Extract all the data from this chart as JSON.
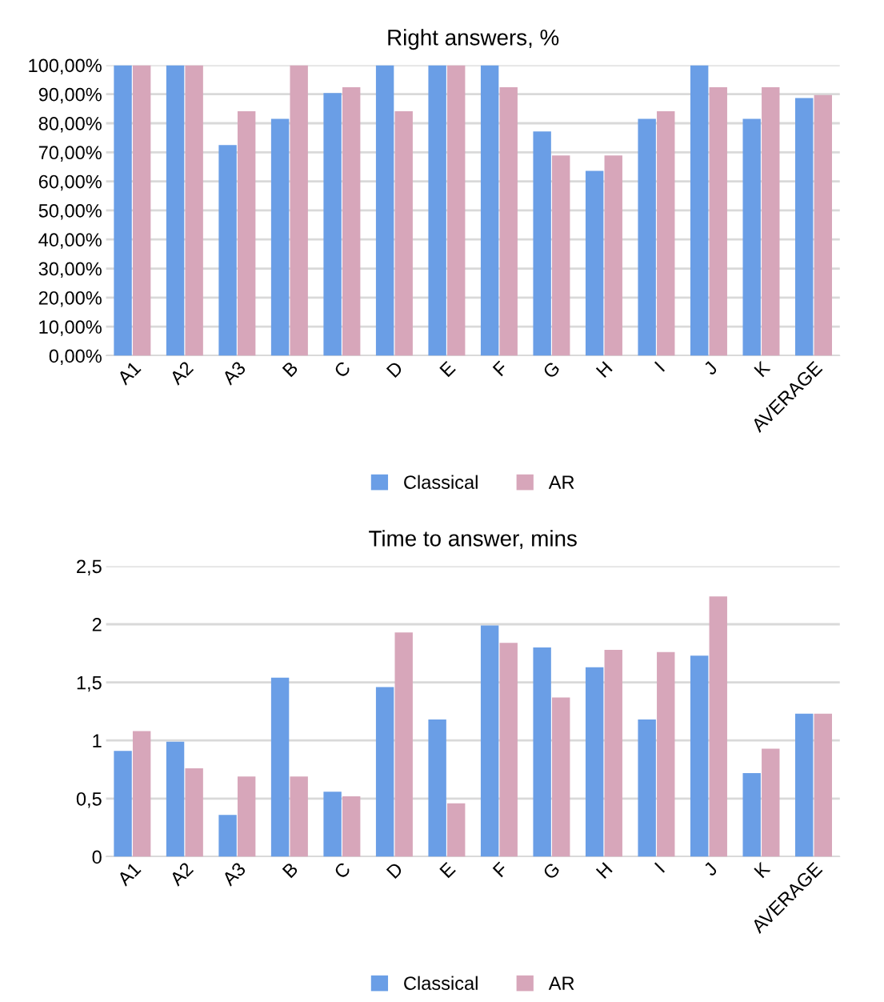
{
  "chart_data": [
    {
      "type": "bar",
      "title": "Right answers, %",
      "categories": [
        "A1",
        "A2",
        "A3",
        "B",
        "C",
        "D",
        "E",
        "F",
        "G",
        "H",
        "I",
        "J",
        "K",
        "AVERAGE"
      ],
      "series": [
        {
          "name": "Classical",
          "color": "#6a9ee6",
          "values": [
            100,
            100,
            72.5,
            81.5,
            90.4,
            100,
            100,
            100,
            77.2,
            63.6,
            81.5,
            100,
            81.5,
            88.7
          ]
        },
        {
          "name": "AR",
          "color": "#d7a6ba",
          "values": [
            100,
            100,
            84.1,
            100,
            92.4,
            84.1,
            100,
            92.4,
            68.9,
            68.9,
            84.1,
            92.4,
            92.4,
            89.7
          ]
        }
      ],
      "ylim": [
        0,
        100
      ],
      "yticks": [
        {
          "value": 0,
          "label": "0,00%"
        },
        {
          "value": 10,
          "label": "10,00%"
        },
        {
          "value": 20,
          "label": "20,00%"
        },
        {
          "value": 30,
          "label": "30,00%"
        },
        {
          "value": 40,
          "label": "40,00%"
        },
        {
          "value": 50,
          "label": "50,00%"
        },
        {
          "value": 60,
          "label": "60,00%"
        },
        {
          "value": 70,
          "label": "70,00%"
        },
        {
          "value": 80,
          "label": "80,00%"
        },
        {
          "value": 90,
          "label": "90,00%"
        },
        {
          "value": 100,
          "label": "100,00%"
        }
      ],
      "grid": "y",
      "legend": "bottom"
    },
    {
      "type": "bar",
      "title": "Time to answer, mins",
      "categories": [
        "A1",
        "A2",
        "A3",
        "B",
        "C",
        "D",
        "E",
        "F",
        "G",
        "H",
        "I",
        "J",
        "K",
        "AVERAGE"
      ],
      "series": [
        {
          "name": "Classical",
          "color": "#6a9ee6",
          "values": [
            0.91,
            0.99,
            0.36,
            1.54,
            0.56,
            1.46,
            1.18,
            1.99,
            1.8,
            1.63,
            1.18,
            1.73,
            0.72,
            1.23
          ]
        },
        {
          "name": "AR",
          "color": "#d7a6ba",
          "values": [
            1.08,
            0.76,
            0.69,
            0.69,
            0.52,
            1.93,
            0.46,
            1.84,
            1.37,
            1.78,
            1.76,
            2.24,
            0.93,
            1.23
          ]
        }
      ],
      "ylim": [
        0,
        2.5
      ],
      "yticks": [
        0,
        {
          "value": 0.5,
          "label": "0,5"
        },
        1,
        {
          "value": 1.5,
          "label": "1,5"
        },
        2,
        {
          "value": 2.5,
          "label": "2,5"
        }
      ],
      "grid": "y",
      "legend": "bottom"
    }
  ]
}
